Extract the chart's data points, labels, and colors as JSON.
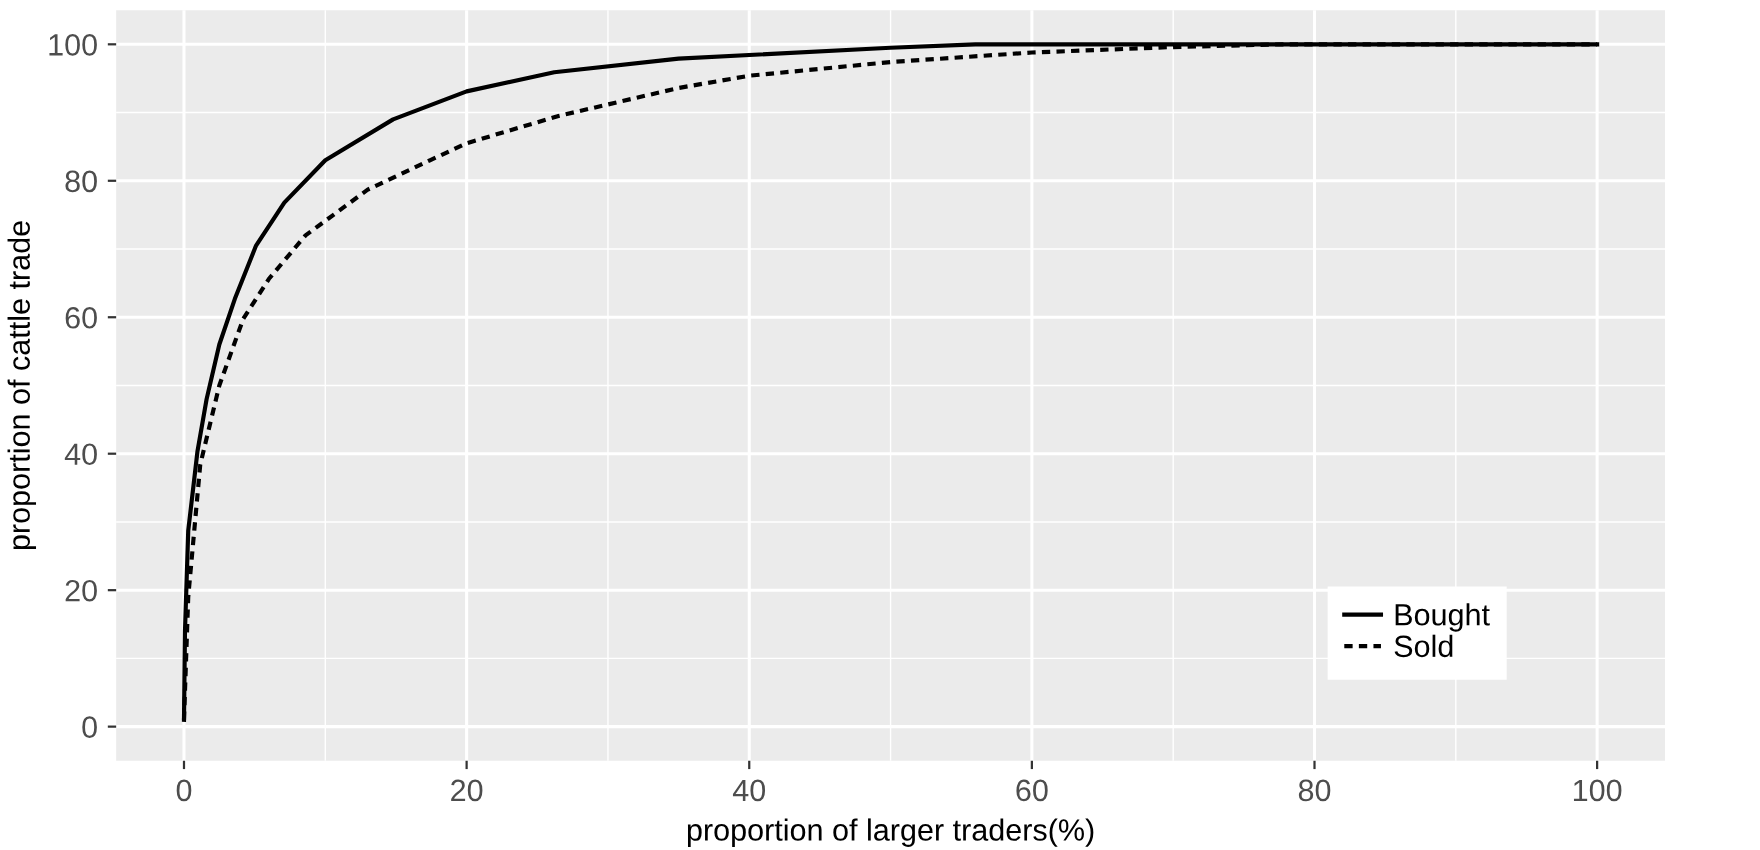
{
  "chart_data": {
    "type": "line",
    "xlabel": "proportion of larger traders(%)",
    "ylabel": "proportion of cattle trade",
    "xlim": [
      -4.8,
      104.8
    ],
    "ylim": [
      -5,
      105
    ],
    "xticks": [
      0,
      20,
      40,
      60,
      80,
      100
    ],
    "yticks": [
      0,
      20,
      40,
      60,
      80,
      100
    ],
    "grid": true,
    "legend": "bottom right",
    "series": [
      {
        "name": "Bought",
        "color": "#000000",
        "line_style": "solid",
        "x": [
          0,
          0.07,
          0.3,
          0.95,
          1.6,
          2.5,
          3.6,
          5.1,
          7.1,
          10,
          14.8,
          20,
          26.2,
          35,
          50,
          56,
          100
        ],
        "values": [
          1,
          14,
          28.7,
          40.3,
          48,
          56,
          62.7,
          70.5,
          76.8,
          83,
          89,
          93.1,
          95.9,
          97.9,
          99.5,
          100,
          100
        ]
      },
      {
        "name": "Sold",
        "color": "#000000",
        "line_style": "dotted",
        "x": [
          0,
          0.3,
          1.15,
          2.5,
          4.2,
          6,
          8.6,
          13,
          17.4,
          20,
          26.5,
          35,
          40,
          50,
          60,
          70,
          77.7,
          100
        ],
        "values": [
          1,
          19,
          38.4,
          50,
          59.8,
          65.6,
          72,
          78.7,
          83,
          85.5,
          89.5,
          93.6,
          95.4,
          97.4,
          98.8,
          99.6,
          100,
          100
        ]
      }
    ]
  }
}
